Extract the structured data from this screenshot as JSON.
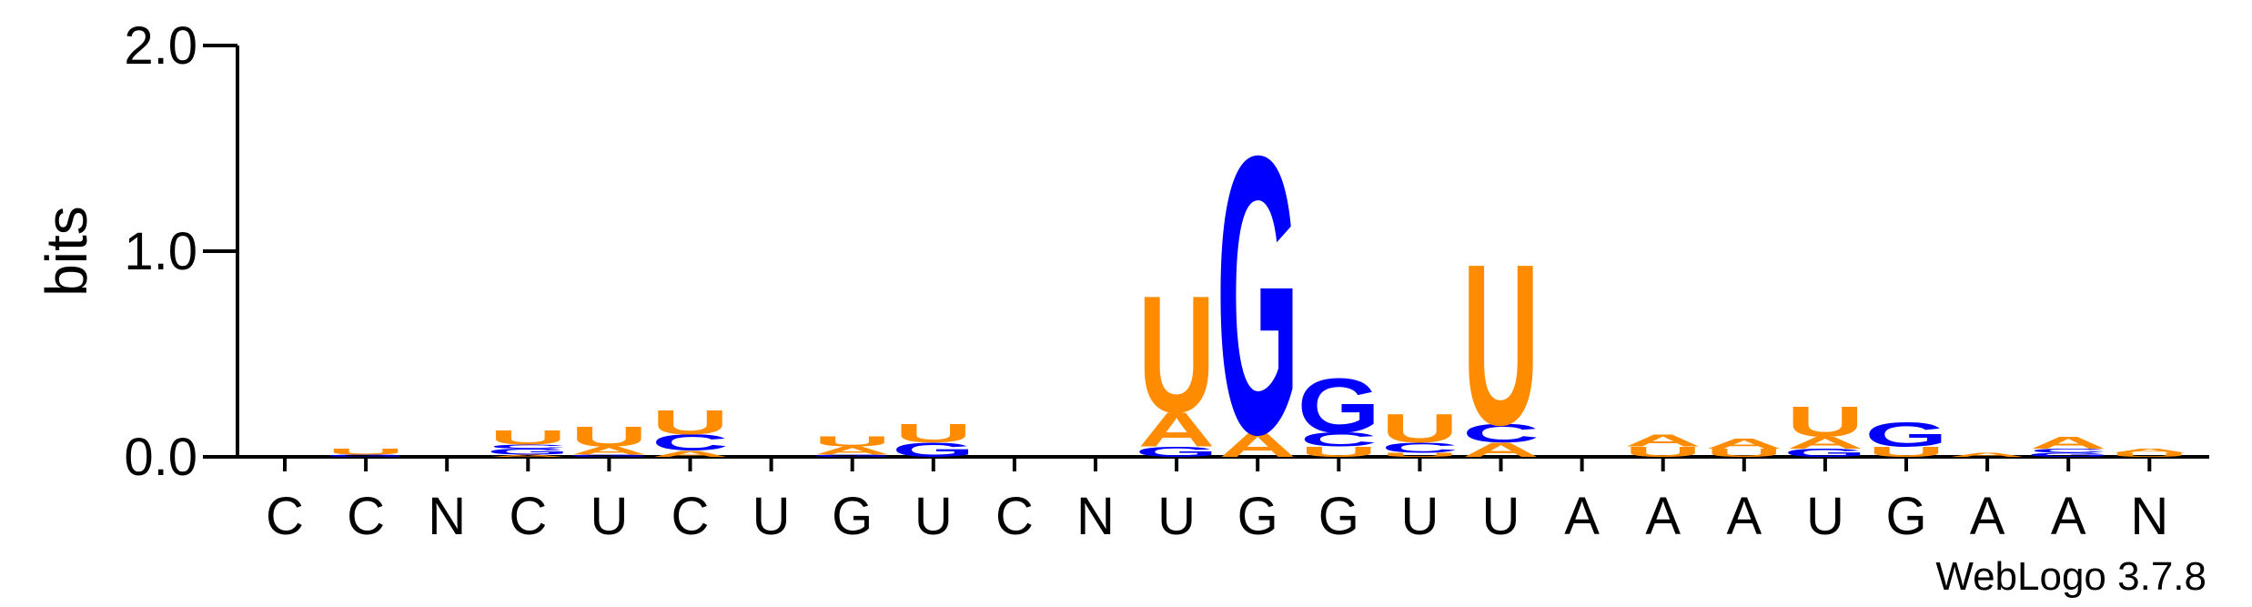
{
  "chart_data": {
    "type": "sequence-logo",
    "ylabel": "bits",
    "ylim": [
      0,
      2.0
    ],
    "y_ticks": [
      {
        "value": 0.0,
        "label": "0.0"
      },
      {
        "value": 1.0,
        "label": "1.0"
      },
      {
        "value": 2.0,
        "label": "2.0"
      }
    ],
    "x_labels": [
      "C",
      "C",
      "N",
      "C",
      "U",
      "C",
      "U",
      "G",
      "U",
      "C",
      "N",
      "U",
      "G",
      "G",
      "U",
      "U",
      "A",
      "A",
      "A",
      "U",
      "G",
      "A",
      "A",
      "N"
    ],
    "colors": {
      "U": "#FF8C00",
      "A": "#FF8C00",
      "G": "#0000FF",
      "C": "#0000FF"
    },
    "footer": "WebLogo 3.7.8",
    "stacks": [
      [],
      [
        {
          "letter": "G",
          "bits": 0.01
        },
        {
          "letter": "U",
          "bits": 0.03
        }
      ],
      [],
      [
        {
          "letter": "A",
          "bits": 0.01
        },
        {
          "letter": "G",
          "bits": 0.03
        },
        {
          "letter": "C",
          "bits": 0.02
        },
        {
          "letter": "U",
          "bits": 0.07
        }
      ],
      [
        {
          "letter": "G",
          "bits": 0.01
        },
        {
          "letter": "A",
          "bits": 0.04
        },
        {
          "letter": "U",
          "bits": 0.1
        }
      ],
      [
        {
          "letter": "A",
          "bits": 0.03
        },
        {
          "letter": "C",
          "bits": 0.08
        },
        {
          "letter": "U",
          "bits": 0.12
        }
      ],
      [],
      [
        {
          "letter": "G",
          "bits": 0.01
        },
        {
          "letter": "A",
          "bits": 0.04
        },
        {
          "letter": "U",
          "bits": 0.05
        }
      ],
      [
        {
          "letter": "G",
          "bits": 0.07
        },
        {
          "letter": "U",
          "bits": 0.09
        }
      ],
      [],
      [],
      [
        {
          "letter": "G",
          "bits": 0.05
        },
        {
          "letter": "A",
          "bits": 0.17
        },
        {
          "letter": "U",
          "bits": 0.58
        }
      ],
      [
        {
          "letter": "A",
          "bits": 0.12
        },
        {
          "letter": "G",
          "bits": 1.38
        }
      ],
      [
        {
          "letter": "U",
          "bits": 0.05
        },
        {
          "letter": "C",
          "bits": 0.07
        },
        {
          "letter": "G",
          "bits": 0.27
        }
      ],
      [
        {
          "letter": "U",
          "bits": 0.02
        },
        {
          "letter": "C",
          "bits": 0.05
        },
        {
          "letter": "U",
          "bits": 0.14
        }
      ],
      [
        {
          "letter": "A",
          "bits": 0.07
        },
        {
          "letter": "C",
          "bits": 0.09
        },
        {
          "letter": "U",
          "bits": 0.8
        }
      ],
      [],
      [
        {
          "letter": "U",
          "bits": 0.05
        },
        {
          "letter": "A",
          "bits": 0.06
        }
      ],
      [
        {
          "letter": "U",
          "bits": 0.04
        },
        {
          "letter": "A",
          "bits": 0.05
        }
      ],
      [
        {
          "letter": "G",
          "bits": 0.04
        },
        {
          "letter": "A",
          "bits": 0.06
        },
        {
          "letter": "U",
          "bits": 0.15
        }
      ],
      [
        {
          "letter": "U",
          "bits": 0.05
        },
        {
          "letter": "G",
          "bits": 0.12
        }
      ],
      [
        {
          "letter": "A",
          "bits": 0.02
        }
      ],
      [
        {
          "letter": "G",
          "bits": 0.02
        },
        {
          "letter": "C",
          "bits": 0.02
        },
        {
          "letter": "A",
          "bits": 0.06
        }
      ],
      [
        {
          "letter": "U",
          "bits": 0.02
        },
        {
          "letter": "A",
          "bits": 0.02
        }
      ]
    ]
  }
}
